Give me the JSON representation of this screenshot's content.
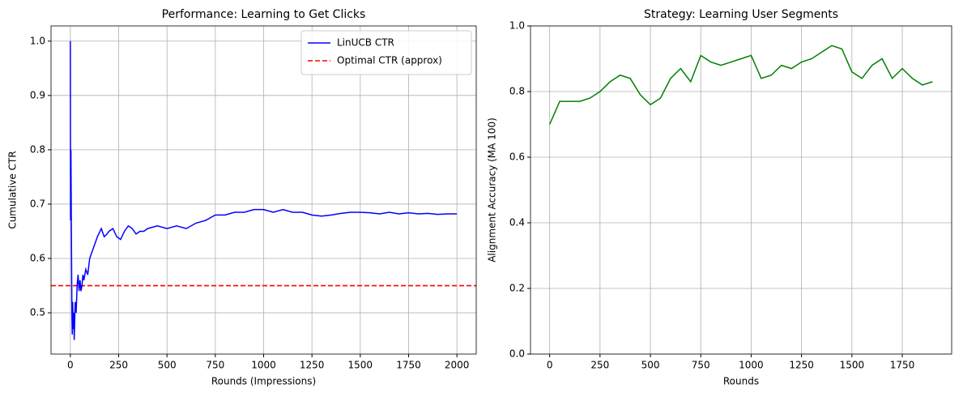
{
  "chart_data": [
    {
      "type": "line",
      "title": "Performance: Learning to Get Clicks",
      "xlabel": "Rounds (Impressions)",
      "ylabel": "Cumulative CTR",
      "x": [
        0,
        1,
        2,
        3,
        5,
        8,
        10,
        12,
        15,
        18,
        20,
        25,
        30,
        35,
        40,
        45,
        50,
        55,
        60,
        65,
        70,
        80,
        90,
        100,
        110,
        120,
        140,
        160,
        175,
        190,
        200,
        220,
        240,
        260,
        280,
        300,
        320,
        340,
        360,
        380,
        400,
        450,
        500,
        550,
        600,
        650,
        700,
        750,
        800,
        850,
        900,
        950,
        1000,
        1050,
        1100,
        1150,
        1200,
        1250,
        1300,
        1350,
        1400,
        1450,
        1500,
        1550,
        1600,
        1650,
        1700,
        1750,
        1800,
        1850,
        1900,
        1950,
        2000
      ],
      "series": [
        {
          "name": "LinUCB CTR",
          "color": "#0000ff",
          "values": [
            1.0,
            0.67,
            0.75,
            0.8,
            0.67,
            0.5,
            0.46,
            0.52,
            0.47,
            0.5,
            0.45,
            0.52,
            0.5,
            0.55,
            0.57,
            0.54,
            0.56,
            0.54,
            0.55,
            0.57,
            0.56,
            0.58,
            0.57,
            0.6,
            0.61,
            0.62,
            0.64,
            0.655,
            0.64,
            0.645,
            0.65,
            0.655,
            0.64,
            0.635,
            0.65,
            0.66,
            0.655,
            0.645,
            0.65,
            0.65,
            0.655,
            0.66,
            0.655,
            0.66,
            0.655,
            0.665,
            0.67,
            0.68,
            0.68,
            0.685,
            0.685,
            0.69,
            0.69,
            0.685,
            0.69,
            0.685,
            0.685,
            0.68,
            0.678,
            0.68,
            0.683,
            0.685,
            0.685,
            0.684,
            0.682,
            0.685,
            0.682,
            0.684,
            0.682,
            0.683,
            0.681,
            0.682,
            0.682
          ]
        }
      ],
      "hlines": [
        {
          "name": "Optimal CTR (approx)",
          "color": "#ff0000",
          "value": 0.55,
          "style": "dashed"
        }
      ],
      "xlim": [
        -100,
        2100
      ],
      "xticks": [
        0,
        250,
        500,
        750,
        1000,
        1250,
        1500,
        1750,
        2000
      ],
      "ylim": [
        0.424,
        1.028
      ],
      "yticks": [
        0.5,
        0.6,
        0.7,
        0.8,
        0.9,
        {
          "value": 1,
          "label": "1.0"
        }
      ],
      "grid": true,
      "legend": "upper right"
    },
    {
      "type": "line",
      "title": "Strategy: Learning User Segments",
      "xlabel": "Rounds",
      "ylabel": "Alignment Accuracy (MA 100)",
      "x": [
        0,
        50,
        100,
        150,
        200,
        250,
        300,
        350,
        400,
        450,
        500,
        550,
        600,
        650,
        700,
        750,
        800,
        850,
        900,
        950,
        1000,
        1050,
        1100,
        1150,
        1200,
        1250,
        1300,
        1350,
        1400,
        1450,
        1500,
        1550,
        1600,
        1650,
        1700,
        1750,
        1800,
        1850,
        1900
      ],
      "series": [
        {
          "color": "#008000",
          "values": [
            0.7,
            0.77,
            0.77,
            0.77,
            0.78,
            0.8,
            0.83,
            0.85,
            0.84,
            0.79,
            0.76,
            0.78,
            0.84,
            0.87,
            0.83,
            0.91,
            0.89,
            0.88,
            0.89,
            0.9,
            0.91,
            0.84,
            0.85,
            0.88,
            0.87,
            0.89,
            0.9,
            0.92,
            0.94,
            0.93,
            0.86,
            0.84,
            0.88,
            0.9,
            0.84,
            0.87,
            0.84,
            0.82,
            0.83
          ]
        }
      ],
      "xlim": [
        -95,
        1995
      ],
      "xticks": [
        0,
        250,
        500,
        750,
        1000,
        1250,
        1500,
        1750
      ],
      "ylim": [
        0,
        1
      ],
      "yticks": [
        {
          "value": 0,
          "label": "0.0"
        },
        0.2,
        0.4,
        0.6,
        0.8,
        {
          "value": 1,
          "label": "1.0"
        }
      ],
      "grid": true
    }
  ]
}
